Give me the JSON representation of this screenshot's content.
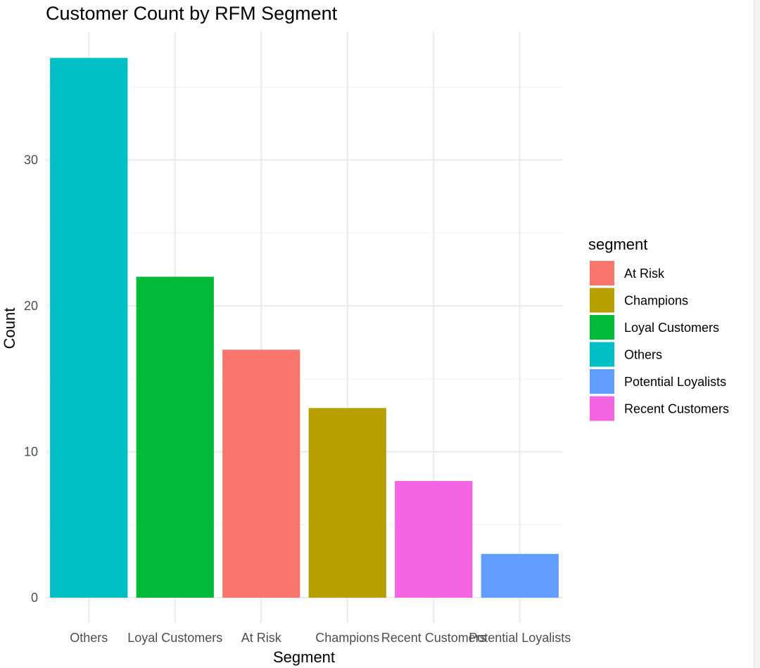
{
  "chart_data": {
    "type": "bar",
    "title": "Customer Count by RFM Segment",
    "xlabel": "Segment",
    "ylabel": "Count",
    "categories": [
      "Others",
      "Loyal Customers",
      "At Risk",
      "Champions",
      "Recent Customers",
      "Potential Loyalists"
    ],
    "values": [
      37,
      22,
      17,
      13,
      8,
      3
    ],
    "bar_colors": [
      "#00BFC4",
      "#00BA38",
      "#F8766D",
      "#B79F00",
      "#F564E3",
      "#619CFF"
    ],
    "yticks": [
      0,
      10,
      20,
      30
    ],
    "ylim": [
      0,
      38.8
    ],
    "grid": true,
    "legend": {
      "title": "segment",
      "placement": "right",
      "items": [
        {
          "label": "At Risk",
          "color": "#F8766D"
        },
        {
          "label": "Champions",
          "color": "#B79F00"
        },
        {
          "label": "Loyal Customers",
          "color": "#00BA38"
        },
        {
          "label": "Others",
          "color": "#00BFC4"
        },
        {
          "label": "Potential Loyalists",
          "color": "#619CFF"
        },
        {
          "label": "Recent Customers",
          "color": "#F564E3"
        }
      ]
    }
  }
}
